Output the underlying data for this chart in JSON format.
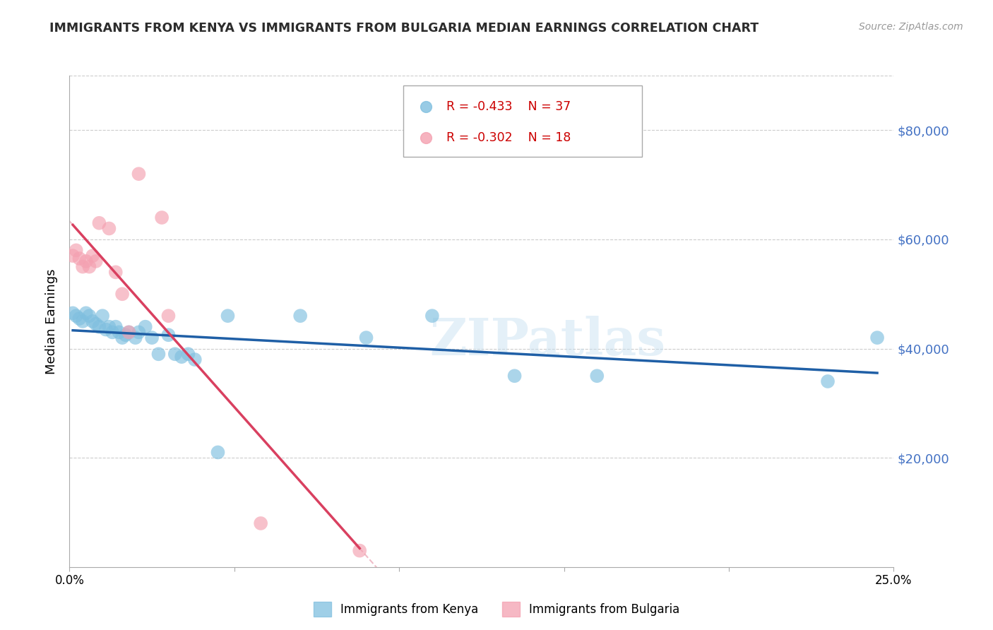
{
  "title": "IMMIGRANTS FROM KENYA VS IMMIGRANTS FROM BULGARIA MEDIAN EARNINGS CORRELATION CHART",
  "source": "Source: ZipAtlas.com",
  "ylabel": "Median Earnings",
  "x_min": 0.0,
  "x_max": 0.25,
  "y_min": 0,
  "y_max": 90000,
  "yticks": [
    0,
    20000,
    40000,
    60000,
    80000
  ],
  "ytick_labels": [
    "",
    "$20,000",
    "$40,000",
    "$60,000",
    "$80,000"
  ],
  "kenya_color_scatter": "#7fbfdf",
  "kenya_color_line": "#1f5fa6",
  "bulgaria_color_scatter": "#f4a0b0",
  "bulgaria_color_line": "#d94060",
  "r_kenya": -0.433,
  "n_kenya": 37,
  "r_bulgaria": -0.302,
  "n_bulgaria": 18,
  "legend_label_kenya": "Immigrants from Kenya",
  "legend_label_bulgaria": "Immigrants from Bulgaria",
  "kenya_x": [
    0.001,
    0.002,
    0.003,
    0.004,
    0.005,
    0.006,
    0.007,
    0.008,
    0.009,
    0.01,
    0.011,
    0.012,
    0.013,
    0.014,
    0.015,
    0.016,
    0.017,
    0.018,
    0.02,
    0.021,
    0.023,
    0.025,
    0.027,
    0.03,
    0.032,
    0.034,
    0.036,
    0.038,
    0.045,
    0.048,
    0.07,
    0.09,
    0.11,
    0.135,
    0.16,
    0.23,
    0.245
  ],
  "kenya_y": [
    46500,
    46000,
    45500,
    45000,
    46500,
    46000,
    45000,
    44500,
    44000,
    46000,
    43500,
    44000,
    43000,
    44000,
    43000,
    42000,
    42500,
    43000,
    42000,
    43000,
    44000,
    42000,
    39000,
    42500,
    39000,
    38500,
    39000,
    38000,
    21000,
    46000,
    46000,
    42000,
    46000,
    35000,
    35000,
    34000,
    42000
  ],
  "bulgaria_x": [
    0.001,
    0.002,
    0.003,
    0.004,
    0.005,
    0.006,
    0.007,
    0.008,
    0.009,
    0.012,
    0.014,
    0.016,
    0.018,
    0.021,
    0.028,
    0.03,
    0.058,
    0.088
  ],
  "bulgaria_y": [
    57000,
    58000,
    56500,
    55000,
    56000,
    55000,
    57000,
    56000,
    63000,
    62000,
    54000,
    50000,
    43000,
    72000,
    64000,
    46000,
    8000,
    3000
  ],
  "watermark": "ZIPatlas",
  "grid_color": "#cccccc",
  "xtick_positions": [
    0.0,
    0.05,
    0.1,
    0.15,
    0.2,
    0.25
  ]
}
